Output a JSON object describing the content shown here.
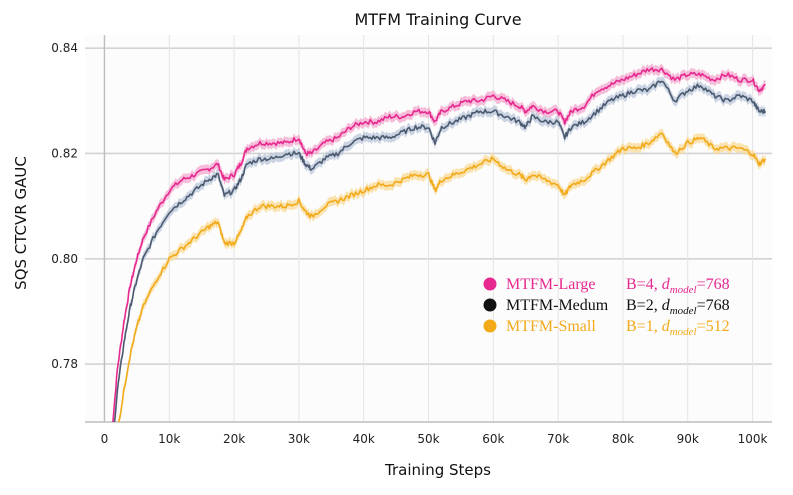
{
  "chart_data": {
    "type": "line",
    "title": "MTFM Training Curve",
    "xlabel": "Training Steps",
    "ylabel": "SQS CTCVR GAUC",
    "xlim": [
      -3000,
      103000
    ],
    "ylim": [
      0.769,
      0.8425
    ],
    "x_ticks": [
      0,
      10000,
      20000,
      30000,
      40000,
      50000,
      60000,
      70000,
      80000,
      90000,
      100000
    ],
    "x_tick_labels": [
      "0",
      "10k",
      "20k",
      "30k",
      "40k",
      "50k",
      "60k",
      "70k",
      "80k",
      "90k",
      "100k"
    ],
    "y_ticks": [
      0.78,
      0.8,
      0.82,
      0.84
    ],
    "y_tick_labels": [
      "0.78",
      "0.80",
      "0.82",
      "0.84"
    ],
    "grid": true,
    "legend_position": "center-right",
    "x": [
      1000,
      2000,
      3000,
      4000,
      5000,
      6000,
      8000,
      10000,
      12000,
      14000,
      16000,
      17500,
      18500,
      20000,
      21000,
      22000,
      24000,
      26000,
      28000,
      30000,
      31000,
      32000,
      34000,
      36000,
      38000,
      40000,
      42000,
      44000,
      46000,
      48000,
      50000,
      51000,
      52000,
      54000,
      56000,
      58000,
      60000,
      62000,
      64000,
      65000,
      66000,
      68000,
      70000,
      71000,
      72000,
      74000,
      76000,
      78000,
      80000,
      82000,
      84000,
      86000,
      88000,
      90000,
      92000,
      94000,
      96000,
      98000,
      100000,
      101000,
      102000
    ],
    "series": [
      {
        "name": "MTFM-Large",
        "legend_name": "MTFM-Large",
        "legend_config": "B=4, ",
        "legend_dim": "=768",
        "color": "#e6288f",
        "band": "#f2a3c9",
        "values": [
          0.765,
          0.779,
          0.788,
          0.795,
          0.8,
          0.804,
          0.809,
          0.813,
          0.815,
          0.816,
          0.817,
          0.818,
          0.815,
          0.816,
          0.818,
          0.821,
          0.822,
          0.822,
          0.822,
          0.823,
          0.82,
          0.82,
          0.822,
          0.823,
          0.825,
          0.826,
          0.826,
          0.827,
          0.827,
          0.828,
          0.828,
          0.826,
          0.828,
          0.829,
          0.83,
          0.83,
          0.831,
          0.83,
          0.829,
          0.828,
          0.829,
          0.828,
          0.828,
          0.826,
          0.828,
          0.829,
          0.832,
          0.833,
          0.834,
          0.835,
          0.836,
          0.836,
          0.834,
          0.835,
          0.835,
          0.834,
          0.835,
          0.834,
          0.834,
          0.832,
          0.833
        ]
      },
      {
        "name": "MTFM-Medum",
        "legend_name": "MTFM-Medum",
        "legend_config": "B=2, ",
        "legend_dim": "=768",
        "color": "#4c5a70",
        "band": "#b7c3d6",
        "values": [
          0.762,
          0.775,
          0.784,
          0.791,
          0.796,
          0.8,
          0.805,
          0.809,
          0.811,
          0.813,
          0.815,
          0.816,
          0.812,
          0.813,
          0.815,
          0.818,
          0.819,
          0.819,
          0.82,
          0.82,
          0.818,
          0.817,
          0.819,
          0.82,
          0.822,
          0.823,
          0.823,
          0.823,
          0.824,
          0.825,
          0.825,
          0.822,
          0.825,
          0.826,
          0.827,
          0.828,
          0.828,
          0.827,
          0.826,
          0.825,
          0.827,
          0.826,
          0.826,
          0.823,
          0.825,
          0.826,
          0.828,
          0.83,
          0.831,
          0.832,
          0.832,
          0.834,
          0.83,
          0.832,
          0.833,
          0.831,
          0.83,
          0.831,
          0.83,
          0.828,
          0.828
        ]
      },
      {
        "name": "MTFM-Small",
        "legend_name": "MTFM-Small",
        "legend_config": "B=1, ",
        "legend_dim": "=512",
        "color": "#f2aa1a",
        "band": "#f9d98f",
        "values": [
          0.755,
          0.767,
          0.775,
          0.782,
          0.787,
          0.791,
          0.796,
          0.8,
          0.802,
          0.804,
          0.806,
          0.807,
          0.803,
          0.803,
          0.805,
          0.808,
          0.81,
          0.81,
          0.81,
          0.811,
          0.809,
          0.808,
          0.81,
          0.811,
          0.812,
          0.813,
          0.814,
          0.814,
          0.815,
          0.816,
          0.816,
          0.813,
          0.815,
          0.816,
          0.817,
          0.818,
          0.819,
          0.817,
          0.816,
          0.815,
          0.816,
          0.815,
          0.814,
          0.812,
          0.814,
          0.815,
          0.817,
          0.819,
          0.821,
          0.821,
          0.822,
          0.824,
          0.82,
          0.822,
          0.823,
          0.821,
          0.821,
          0.821,
          0.82,
          0.818,
          0.819
        ]
      }
    ],
    "legend_subscript_base": "d",
    "legend_subscript": "model"
  }
}
